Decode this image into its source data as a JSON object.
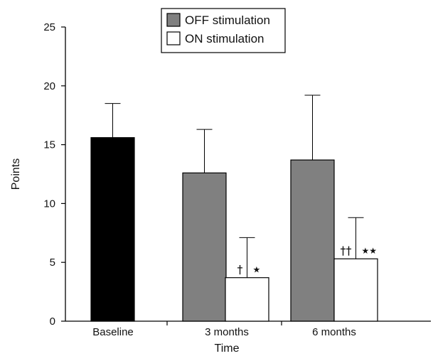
{
  "chart_data": {
    "type": "bar",
    "xlabel": "Time",
    "ylabel": "Points",
    "ylim": [
      0,
      25
    ],
    "yticks": [
      0,
      5,
      10,
      15,
      20,
      25
    ],
    "legend": {
      "placement": "top-center",
      "entries": [
        {
          "label": "OFF stimulation",
          "color": "#808080"
        },
        {
          "label": "ON stimulation",
          "color": "#ffffff"
        }
      ]
    },
    "categories": [
      "Baseline",
      "3 months",
      "6 months"
    ],
    "bars": [
      {
        "category": "Baseline",
        "series": "Baseline",
        "value": 15.6,
        "error": 2.9,
        "color": "#000000",
        "annotation": ""
      },
      {
        "category": "3 months",
        "series": "OFF stimulation",
        "value": 12.6,
        "error": 3.7,
        "color": "#808080",
        "annotation": ""
      },
      {
        "category": "3 months",
        "series": "ON stimulation",
        "value": 3.7,
        "error": 3.4,
        "color": "#ffffff",
        "annotation_left": "†",
        "annotation_right": "★"
      },
      {
        "category": "6 months",
        "series": "OFF stimulation",
        "value": 13.7,
        "error": 5.5,
        "color": "#808080",
        "annotation": ""
      },
      {
        "category": "6 months",
        "series": "ON stimulation",
        "value": 5.3,
        "error": 3.5,
        "color": "#ffffff",
        "annotation_left": "††",
        "annotation_right": "★★"
      }
    ],
    "grid": false
  }
}
